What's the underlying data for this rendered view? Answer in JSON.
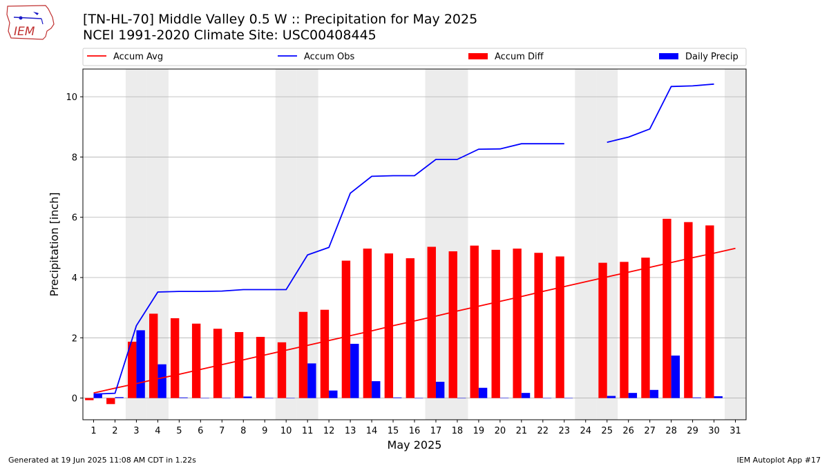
{
  "header": {
    "title_line1": "[TN-HL-70] Middle Valley 0.5 W :: Precipitation for May 2025",
    "title_line2": "NCEI 1991-2020 Climate Site: USC00408445"
  },
  "logo": {
    "text": "IEM",
    "icon": "iowa-state-outline-icon"
  },
  "footer": {
    "left": "Generated at 19 Jun 2025 11:08 AM CDT in 1.22s",
    "right": "IEM Autoplot App #17"
  },
  "colors": {
    "avg": "#ff0000",
    "obs": "#0000ff",
    "diff": "#ff0000",
    "daily": "#0000ff",
    "weekend": "#ececec",
    "grid": "#b0b0b0"
  },
  "chart_data": {
    "type": "bar",
    "title": "[TN-HL-70] Middle Valley 0.5 W :: Precipitation for May 2025",
    "subtitle": "NCEI 1991-2020 Climate Site: USC00408445",
    "xlabel": "May 2025",
    "ylabel": "Precipitation [inch]",
    "x": [
      1,
      2,
      3,
      4,
      5,
      6,
      7,
      8,
      9,
      10,
      11,
      12,
      13,
      14,
      15,
      16,
      17,
      18,
      19,
      20,
      21,
      22,
      23,
      24,
      25,
      26,
      27,
      28,
      29,
      30,
      31
    ],
    "x_tick_labels": [
      "1",
      "2",
      "3",
      "4",
      "5",
      "6",
      "7",
      "8",
      "9",
      "10",
      "11",
      "12",
      "13",
      "14",
      "15",
      "16",
      "17",
      "18",
      "19",
      "20",
      "21",
      "22",
      "23",
      "24",
      "25",
      "26",
      "27",
      "28",
      "29",
      "30",
      "31"
    ],
    "ylim": [
      -0.72,
      10.92
    ],
    "y_ticks": [
      0,
      2,
      4,
      6,
      8,
      10
    ],
    "grid": "horizontal",
    "legend_position": "top",
    "weekend_days": [
      3,
      4,
      10,
      11,
      17,
      18,
      24,
      25,
      31
    ],
    "series": [
      {
        "name": "Accum Avg",
        "kind": "line",
        "color": "#ff0000",
        "values": [
          0.17,
          0.33,
          0.48,
          0.64,
          0.79,
          0.95,
          1.11,
          1.27,
          1.43,
          1.59,
          1.75,
          1.91,
          2.07,
          2.23,
          2.4,
          2.56,
          2.72,
          2.89,
          3.05,
          3.21,
          3.37,
          3.54,
          3.7,
          3.86,
          4.02,
          4.18,
          4.34,
          4.5,
          4.66,
          4.81,
          4.97
        ]
      },
      {
        "name": "Accum Obs",
        "kind": "line",
        "color": "#0000ff",
        "values": [
          0.13,
          0.16,
          2.4,
          3.52,
          3.54,
          3.54,
          3.55,
          3.6,
          3.6,
          3.6,
          4.75,
          5.0,
          6.8,
          7.36,
          7.38,
          7.38,
          7.92,
          7.92,
          8.26,
          8.27,
          8.44,
          8.44,
          8.44,
          null,
          8.49,
          8.66,
          8.93,
          10.34,
          10.36,
          10.42,
          null
        ]
      },
      {
        "name": "Accum Diff",
        "kind": "bar",
        "color": "#ff0000",
        "values": [
          -0.07,
          -0.2,
          1.87,
          2.8,
          2.65,
          2.47,
          2.3,
          2.19,
          2.03,
          1.85,
          2.86,
          2.93,
          4.56,
          4.96,
          4.8,
          4.64,
          5.02,
          4.87,
          5.06,
          4.92,
          4.96,
          4.82,
          4.7,
          null,
          4.49,
          4.52,
          4.66,
          5.95,
          5.84,
          5.73,
          null
        ]
      },
      {
        "name": "Daily Precip",
        "kind": "bar",
        "color": "#0000ff",
        "values": [
          0.13,
          0.03,
          2.25,
          1.12,
          0.02,
          0.0,
          0.01,
          0.05,
          0.0,
          0.0,
          1.15,
          0.25,
          1.8,
          0.56,
          0.02,
          0.0,
          0.54,
          0.0,
          0.34,
          0.01,
          0.17,
          0.0,
          0.0,
          null,
          0.07,
          0.17,
          0.27,
          1.41,
          0.02,
          0.06,
          null
        ]
      }
    ]
  }
}
